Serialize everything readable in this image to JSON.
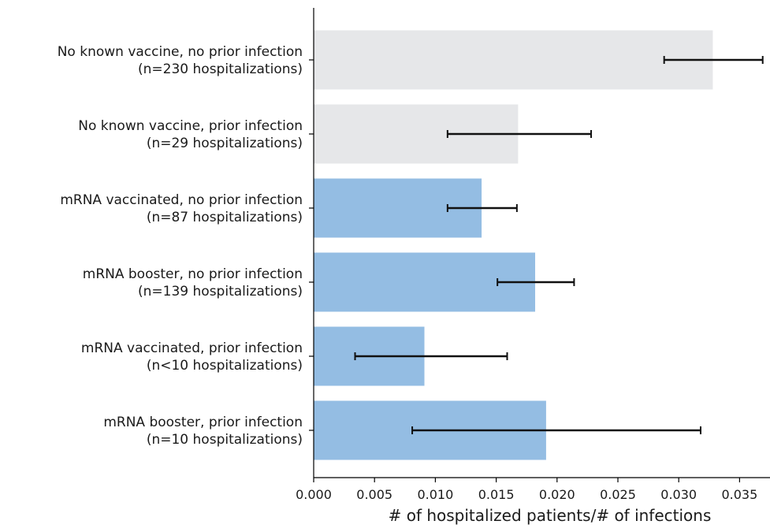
{
  "chart_data": {
    "type": "bar",
    "orientation": "horizontal",
    "title": "",
    "xlabel": "# of hospitalized patients/# of infections",
    "ylabel": "",
    "xlim": [
      0,
      0.0375
    ],
    "xticks": [
      0.0,
      0.005,
      0.01,
      0.015,
      0.02,
      0.025,
      0.03,
      0.035
    ],
    "xtick_labels": [
      "0.000",
      "0.005",
      "0.010",
      "0.015",
      "0.020",
      "0.025",
      "0.030",
      "0.035"
    ],
    "grid": false,
    "categories": [
      {
        "line1": "No known vaccine, no prior infection",
        "line2": "(n=230 hospitalizations)"
      },
      {
        "line1": "No known vaccine, prior infection",
        "line2": "(n=29 hospitalizations)"
      },
      {
        "line1": "mRNA vaccinated, no prior infection",
        "line2": "(n=87 hospitalizations)"
      },
      {
        "line1": "mRNA booster, no prior infection",
        "line2": "(n=139 hospitalizations)"
      },
      {
        "line1": "mRNA vaccinated, prior infection",
        "line2": "(n<10 hospitalizations)"
      },
      {
        "line1": "mRNA booster, prior infection",
        "line2": "(n=10 hospitalizations)"
      }
    ],
    "values": [
      0.0328,
      0.0168,
      0.0138,
      0.0182,
      0.0091,
      0.0191
    ],
    "error_low": [
      0.0288,
      0.011,
      0.011,
      0.0151,
      0.0034,
      0.0081
    ],
    "error_high": [
      0.0369,
      0.0228,
      0.0167,
      0.0214,
      0.0159,
      0.0318
    ],
    "bar_colors": [
      "#e6e7e9",
      "#e6e7e9",
      "#94bde3",
      "#94bde3",
      "#94bde3",
      "#94bde3"
    ],
    "error_color": "#111111"
  }
}
